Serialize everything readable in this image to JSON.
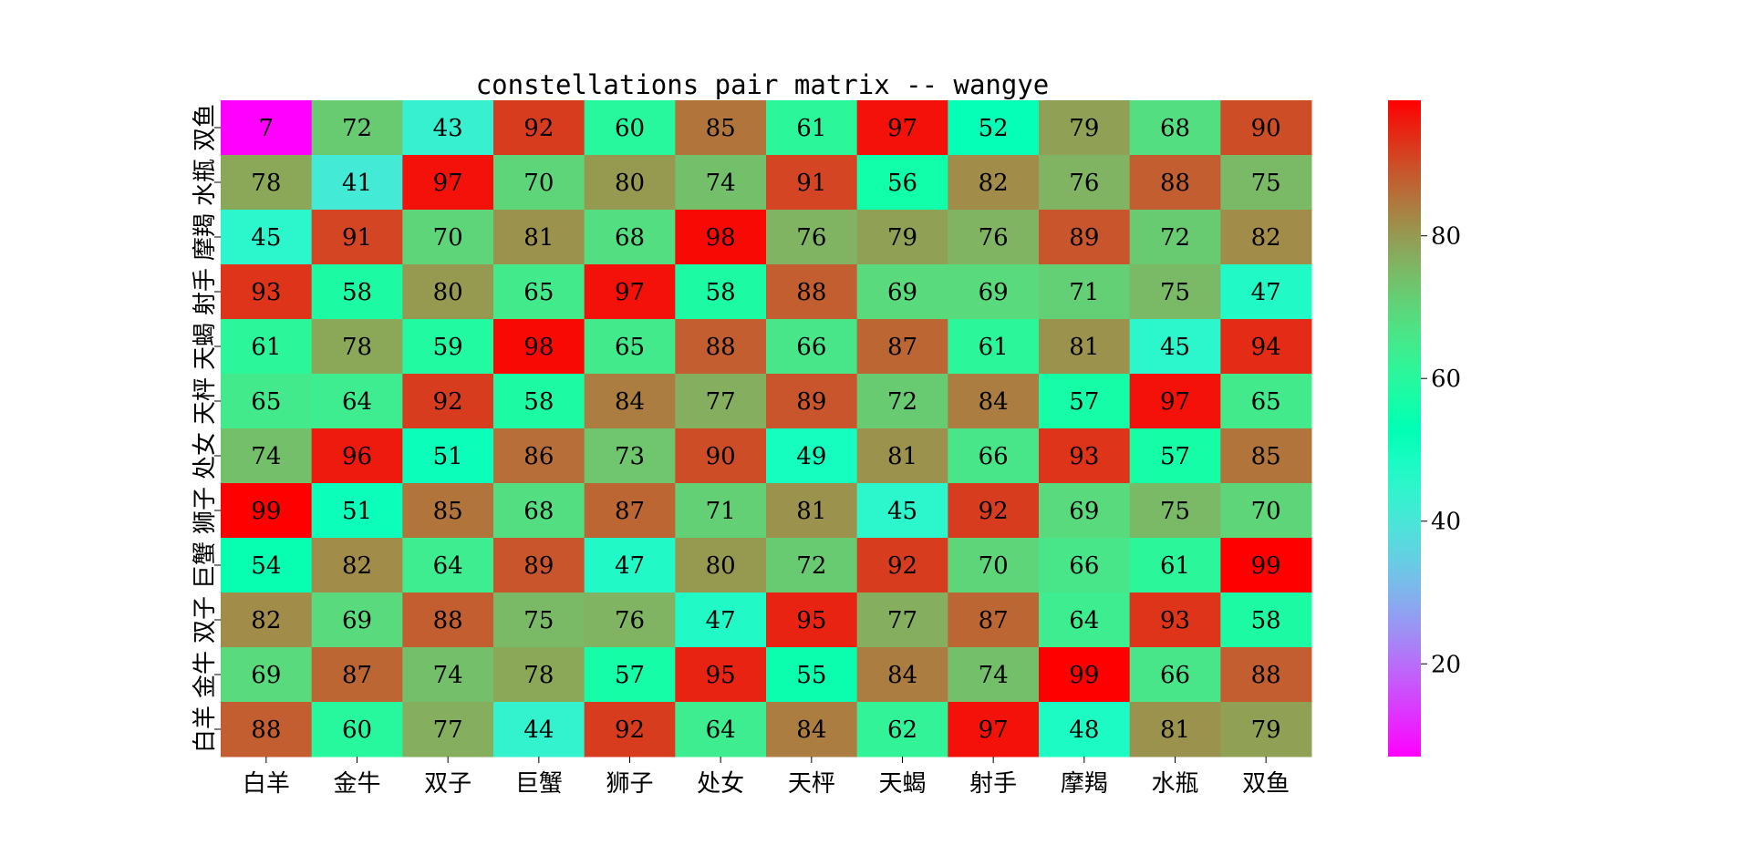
{
  "chart_data": {
    "type": "heatmap",
    "title": "constellations pair matrix -- wangye",
    "x_labels": [
      "白羊",
      "金牛",
      "双子",
      "巨蟹",
      "狮子",
      "处女",
      "天枰",
      "天蝎",
      "射手",
      "摩羯",
      "水瓶",
      "双鱼"
    ],
    "y_labels_top_to_bottom": [
      "双鱼",
      "水瓶",
      "摩羯",
      "射手",
      "天蝎",
      "天枰",
      "处女",
      "狮子",
      "巨蟹",
      "双子",
      "金牛",
      "白羊"
    ],
    "values": [
      [
        7,
        72,
        43,
        92,
        60,
        85,
        61,
        97,
        52,
        79,
        68,
        90
      ],
      [
        78,
        41,
        97,
        70,
        80,
        74,
        91,
        56,
        82,
        76,
        88,
        75
      ],
      [
        45,
        91,
        70,
        81,
        68,
        98,
        76,
        79,
        76,
        89,
        72,
        82
      ],
      [
        93,
        58,
        80,
        65,
        97,
        58,
        88,
        69,
        69,
        71,
        75,
        47
      ],
      [
        61,
        78,
        59,
        98,
        65,
        88,
        66,
        87,
        61,
        81,
        45,
        94
      ],
      [
        65,
        64,
        92,
        58,
        84,
        77,
        89,
        72,
        84,
        57,
        97,
        65
      ],
      [
        74,
        96,
        51,
        86,
        73,
        90,
        49,
        81,
        66,
        93,
        57,
        85
      ],
      [
        99,
        51,
        85,
        68,
        87,
        71,
        81,
        45,
        92,
        69,
        75,
        70
      ],
      [
        54,
        82,
        64,
        89,
        47,
        80,
        72,
        92,
        70,
        66,
        61,
        99
      ],
      [
        82,
        69,
        88,
        75,
        76,
        47,
        95,
        77,
        87,
        64,
        93,
        58
      ],
      [
        69,
        87,
        74,
        78,
        57,
        95,
        55,
        84,
        74,
        99,
        66,
        88
      ],
      [
        88,
        60,
        77,
        44,
        92,
        64,
        84,
        62,
        97,
        48,
        81,
        79
      ]
    ],
    "colormap": "rainbow",
    "vmin": 7,
    "vmax": 99,
    "colorbar_ticks": [
      20,
      40,
      60,
      80
    ],
    "annotations": true
  }
}
